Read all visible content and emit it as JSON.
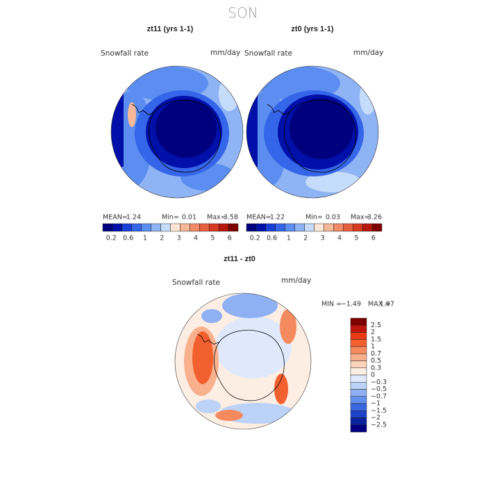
{
  "title": "SON",
  "panels": [
    {
      "title": "zt11 (yrs 1-1)",
      "variable": "Snowfall rate",
      "units": "mm/day",
      "stats": [
        {
          "label": "MEAN=",
          "value": "1.24"
        },
        {
          "label": "Min=",
          "value": "0.01"
        },
        {
          "label": "Max=",
          "value": "3.58"
        }
      ],
      "colorbar": {
        "colors": [
          "#00007f",
          "#0010a8",
          "#1a3fd6",
          "#3565e8",
          "#5b8ef0",
          "#8fb4f5",
          "#c5dcfa",
          "#fde6d6",
          "#f7b89a",
          "#f08a68",
          "#e8603e",
          "#d83a1f",
          "#b8170c",
          "#7f0000"
        ],
        "labels": [
          "0.2",
          "0.6",
          "1",
          "2",
          "3",
          "4",
          "5",
          "6"
        ]
      }
    },
    {
      "title": "zt0 (yrs 1-1)",
      "variable": "Snowfall rate",
      "units": "mm/day",
      "stats": [
        {
          "label": "MEAN=",
          "value": "1.22"
        },
        {
          "label": "Min=",
          "value": "0.03"
        },
        {
          "label": "Max=",
          "value": "3.26"
        }
      ],
      "colorbar": {
        "colors": [
          "#00007f",
          "#0010a8",
          "#1a3fd6",
          "#3565e8",
          "#5b8ef0",
          "#8fb4f5",
          "#c5dcfa",
          "#fde6d6",
          "#f7b89a",
          "#f08a68",
          "#e8603e",
          "#d83a1f",
          "#b8170c",
          "#7f0000"
        ],
        "labels": [
          "0.2",
          "0.6",
          "1",
          "2",
          "3",
          "4",
          "5",
          "6"
        ]
      }
    },
    {
      "title": "zt11 - zt0",
      "variable": "Snowfall rate",
      "units": "mm/day",
      "stats": [
        {
          "label": "MIN =",
          "value": "−1.49"
        },
        {
          "label": "MAX =",
          "value": "1.97"
        }
      ],
      "colorbar": {
        "colors": [
          "#7f0000",
          "#c0150a",
          "#e83a14",
          "#f2602f",
          "#f58a5f",
          "#f9b08d",
          "#fcd3bd",
          "#fdeee4",
          "#dfe9fb",
          "#bcd2f7",
          "#8fb0f2",
          "#6390ec",
          "#3b68e0",
          "#1f44c8",
          "#0a24a0",
          "#000080"
        ],
        "labels": [
          "2.5",
          "2",
          "1.5",
          "1",
          "0.7",
          "0.5",
          "0.3",
          "0",
          "−0.3",
          "−0.5",
          "−0.7",
          "−1",
          "−1.5",
          "−2",
          "−2.5"
        ]
      }
    }
  ]
}
